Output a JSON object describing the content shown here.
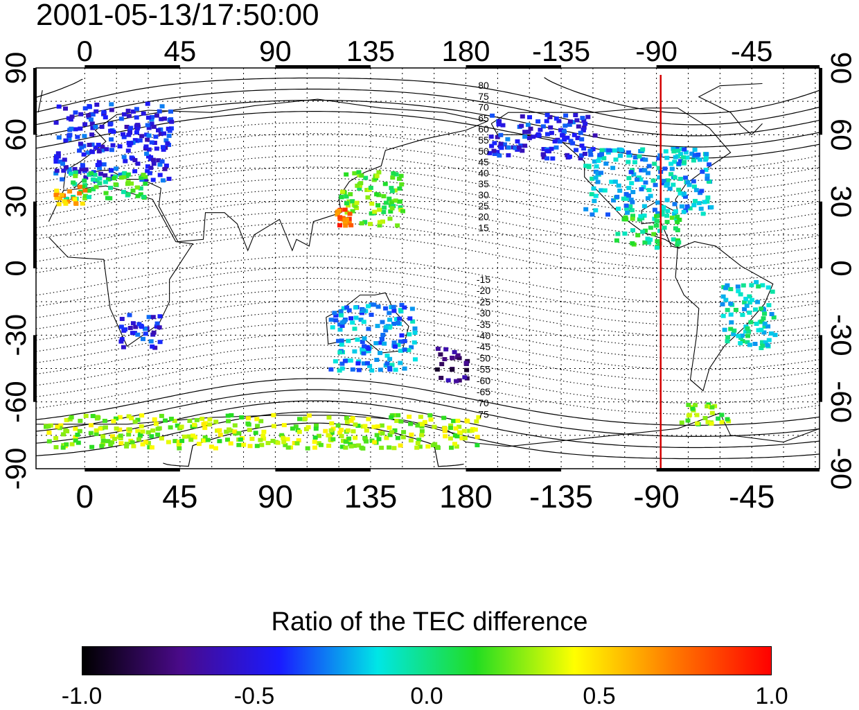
{
  "title": "2001-05-13/17:50:00",
  "axes": {
    "lon_ticks": [
      "0",
      "45",
      "90",
      "135",
      "180",
      "-135",
      "-90",
      "-45"
    ],
    "lat_ticks": [
      "90",
      "60",
      "30",
      "0",
      "-30",
      "-60",
      "-90"
    ]
  },
  "contour_labels": {
    "north": [
      "80",
      "75",
      "70",
      "65",
      "60",
      "55",
      "50",
      "45",
      "40",
      "35",
      "30",
      "25",
      "20",
      "15"
    ],
    "south": [
      "-15",
      "-20",
      "-25",
      "-30",
      "-35",
      "-40",
      "-45",
      "-50",
      "-55",
      "-60",
      "-65",
      "70",
      "75"
    ]
  },
  "meridian_marker": {
    "lon": -88,
    "color": "#d40000"
  },
  "colorbar": {
    "title": "Ratio of the TEC difference",
    "ticks": [
      "-1.0",
      "-0.5",
      "0.0",
      "0.5",
      "1.0"
    ],
    "range": [
      -1.0,
      1.0
    ],
    "colormap": [
      "#000000",
      "#4a0a8a",
      "#1a1aff",
      "#00e6e6",
      "#22dd22",
      "#ffff00",
      "#ff7a00",
      "#ff0000"
    ]
  },
  "chart_data": {
    "type": "heatmap",
    "title": "2001-05-13/17:50:00",
    "xlabel": "",
    "ylabel": "",
    "xlim": [
      -23,
      347
    ],
    "ylim": [
      -90,
      90
    ],
    "grid": true,
    "colorbar_label": "Ratio of the TEC difference",
    "value_range": [
      -1.0,
      1.0
    ],
    "clusters": [
      {
        "region": "Europe",
        "lon": [
          -15,
          40
        ],
        "lat": [
          40,
          75
        ],
        "value": -0.45
      },
      {
        "region": "Southern Europe",
        "lon": [
          -10,
          30
        ],
        "lat": [
          32,
          45
        ],
        "value": 0.1
      },
      {
        "region": "Iberia/Morocco",
        "lon": [
          -15,
          0
        ],
        "lat": [
          28,
          38
        ],
        "value": 0.6
      },
      {
        "region": "Southern Africa",
        "lon": [
          15,
          35
        ],
        "lat": [
          -35,
          -20
        ],
        "value": -0.45
      },
      {
        "region": "East Asia",
        "lon": [
          120,
          150
        ],
        "lat": [
          20,
          45
        ],
        "value": 0.2
      },
      {
        "region": "Taiwan",
        "lon": [
          118,
          125
        ],
        "lat": [
          20,
          28
        ],
        "value": 0.8
      },
      {
        "region": "Australia",
        "lon": [
          115,
          155
        ],
        "lat": [
          -45,
          -15
        ],
        "value": -0.25
      },
      {
        "region": "New Zealand area",
        "lon": [
          165,
          180
        ],
        "lat": [
          -50,
          -35
        ],
        "value": -0.75
      },
      {
        "region": "Alaska/Canada",
        "lon": [
          -170,
          -120
        ],
        "lat": [
          50,
          70
        ],
        "value": -0.45
      },
      {
        "region": "North America",
        "lon": [
          -125,
          -65
        ],
        "lat": [
          25,
          55
        ],
        "value": -0.2
      },
      {
        "region": "Central America",
        "lon": [
          -110,
          -80
        ],
        "lat": [
          10,
          25
        ],
        "value": 0.05
      },
      {
        "region": "Eastern South America",
        "lon": [
          -60,
          -35
        ],
        "lat": [
          -35,
          -5
        ],
        "value": -0.1
      },
      {
        "region": "Antarctic Peninsula",
        "lon": [
          -80,
          -55
        ],
        "lat": [
          -70,
          -60
        ],
        "value": 0.25
      },
      {
        "region": "Antarctic coast",
        "lon": [
          -20,
          185
        ],
        "lat": [
          -80,
          -65
        ],
        "value": 0.3
      }
    ]
  }
}
